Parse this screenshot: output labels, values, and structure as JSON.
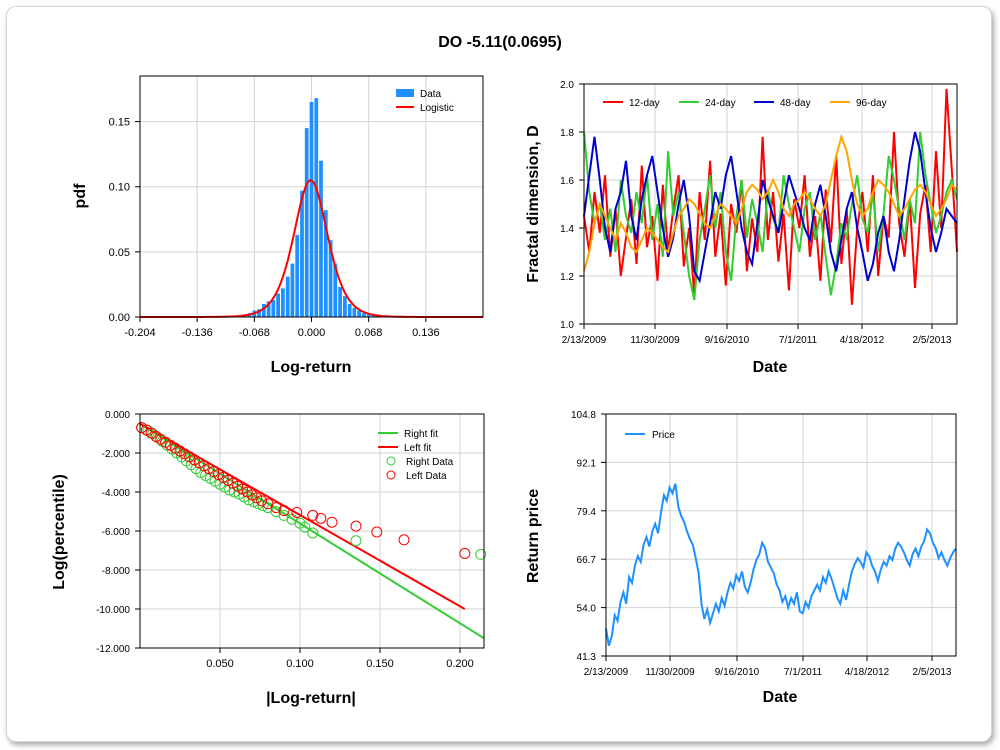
{
  "title": "DO -5.11(0.0695)",
  "colors": {
    "bar": "#1e90ff",
    "red": "#ff0000",
    "green": "#33cc33",
    "blue": "#0000cd",
    "orange": "#ffa500",
    "price": "#1e90ff",
    "grid": "#d3d3d3"
  },
  "chart_data": [
    {
      "type": "bar",
      "name": "pdf-histogram",
      "xlabel": "Log-return",
      "ylabel": "pdf",
      "xlim": [
        -0.204,
        0.204
      ],
      "ylim": [
        0,
        0.185
      ],
      "xticks": [
        "-0.204",
        "-0.136",
        "-0.068",
        "0.000",
        "0.068",
        "0.136"
      ],
      "xtick_values": [
        -0.204,
        -0.136,
        -0.068,
        0.0,
        0.068,
        0.136
      ],
      "yticks": [
        "0.00",
        "0.05",
        "0.10",
        "0.15"
      ],
      "ytick_values": [
        0,
        0.05,
        0.1,
        0.15
      ],
      "legend": [
        "Data",
        "Logistic"
      ],
      "bin_width": 0.00567,
      "bins_x": [
        -0.0907,
        -0.085,
        -0.0794,
        -0.0737,
        -0.068,
        -0.0624,
        -0.0567,
        -0.051,
        -0.0454,
        -0.0397,
        -0.034,
        -0.0283,
        -0.0227,
        -0.017,
        -0.0113,
        -0.0057,
        0.0,
        0.0057,
        0.0113,
        0.017,
        0.0227,
        0.0283,
        0.034,
        0.0397,
        0.0454,
        0.051,
        0.0567,
        0.0624,
        0.068,
        0.0737,
        0.0794,
        0.085,
        0.0907,
        0.0964,
        0.102
      ],
      "values": [
        0.001,
        0.001,
        0.002,
        0.003,
        0.005,
        0.006,
        0.01,
        0.012,
        0.013,
        0.018,
        0.022,
        0.031,
        0.041,
        0.063,
        0.097,
        0.145,
        0.165,
        0.168,
        0.12,
        0.082,
        0.059,
        0.041,
        0.023,
        0.016,
        0.01,
        0.007,
        0.005,
        0.003,
        0.002,
        0.002,
        0.001,
        0.001,
        0.001,
        0.0005,
        0.0005
      ],
      "logistic": {
        "mu": -0.001,
        "s": 0.0135
      }
    },
    {
      "type": "line",
      "name": "fractal-dimension",
      "xlabel": "Date",
      "ylabel": "Fractal dimension, D",
      "xticks": [
        "2/13/2009",
        "11/30/2009",
        "9/16/2010",
        "7/1/2011",
        "4/18/2012",
        "2/5/2013"
      ],
      "yticks": [
        "1.0",
        "1.2",
        "1.4",
        "1.6",
        "1.8",
        "2.0"
      ],
      "ylim": [
        1.0,
        2.0
      ],
      "series": [
        {
          "name": "12-day",
          "color": "#ff0000",
          "values": [
            1.45,
            1.3,
            1.55,
            1.38,
            1.62,
            1.28,
            1.48,
            1.2,
            1.36,
            1.52,
            1.25,
            1.66,
            1.32,
            1.45,
            1.18,
            1.58,
            1.3,
            1.48,
            1.62,
            1.24,
            1.4,
            1.12,
            1.55,
            1.35,
            1.68,
            1.28,
            1.46,
            1.16,
            1.5,
            1.38,
            1.6,
            1.22,
            1.44,
            1.3,
            1.78,
            1.35,
            1.55,
            1.26,
            1.46,
            1.14,
            1.52,
            1.4,
            1.62,
            1.28,
            1.45,
            1.18,
            1.56,
            1.34,
            1.7,
            1.25,
            1.48,
            1.08,
            1.4,
            1.55,
            1.3,
            1.62,
            1.2,
            1.45,
            1.36,
            1.8,
            1.42,
            1.28,
            1.52,
            1.15,
            1.46,
            1.58,
            1.3,
            1.72,
            1.4,
            1.98,
            1.65,
            1.3
          ]
        },
        {
          "name": "24-day",
          "color": "#33cc33",
          "values": [
            1.8,
            1.55,
            1.42,
            1.5,
            1.35,
            1.48,
            1.3,
            1.6,
            1.45,
            1.38,
            1.55,
            1.42,
            1.62,
            1.35,
            1.5,
            1.28,
            1.72,
            1.45,
            1.55,
            1.38,
            1.2,
            1.1,
            1.35,
            1.48,
            1.62,
            1.4,
            1.55,
            1.3,
            1.18,
            1.45,
            1.6,
            1.36,
            1.52,
            1.42,
            1.3,
            1.56,
            1.44,
            1.38,
            1.62,
            1.5,
            1.4,
            1.3,
            1.48,
            1.55,
            1.35,
            1.46,
            1.28,
            1.12,
            1.25,
            1.42,
            1.36,
            1.5,
            1.62,
            1.44,
            1.38,
            1.55,
            1.3,
            1.46,
            1.7,
            1.6,
            1.48,
            1.35,
            1.52,
            1.42,
            1.8,
            1.62,
            1.5,
            1.38,
            1.45,
            1.55,
            1.6,
            1.52
          ]
        },
        {
          "name": "48-day",
          "color": "#0000cd",
          "values": [
            1.45,
            1.62,
            1.78,
            1.6,
            1.4,
            1.3,
            1.48,
            1.55,
            1.68,
            1.45,
            1.35,
            1.52,
            1.62,
            1.7,
            1.55,
            1.4,
            1.28,
            1.36,
            1.5,
            1.6,
            1.45,
            1.22,
            1.18,
            1.3,
            1.42,
            1.55,
            1.48,
            1.62,
            1.7,
            1.55,
            1.4,
            1.3,
            1.25,
            1.42,
            1.6,
            1.52,
            1.45,
            1.38,
            1.5,
            1.62,
            1.55,
            1.48,
            1.4,
            1.35,
            1.5,
            1.58,
            1.45,
            1.3,
            1.22,
            1.35,
            1.48,
            1.55,
            1.4,
            1.3,
            1.18,
            1.25,
            1.38,
            1.45,
            1.3,
            1.22,
            1.35,
            1.52,
            1.68,
            1.8,
            1.72,
            1.55,
            1.4,
            1.3,
            1.38,
            1.48,
            1.45,
            1.42
          ]
        },
        {
          "name": "96-day",
          "color": "#ffa500",
          "values": [
            1.22,
            1.3,
            1.42,
            1.5,
            1.45,
            1.4,
            1.35,
            1.42,
            1.38,
            1.32,
            1.3,
            1.35,
            1.4,
            1.38,
            1.35,
            1.32,
            1.3,
            1.38,
            1.45,
            1.48,
            1.52,
            1.5,
            1.46,
            1.42,
            1.4,
            1.45,
            1.5,
            1.48,
            1.45,
            1.42,
            1.48,
            1.55,
            1.58,
            1.56,
            1.52,
            1.55,
            1.6,
            1.55,
            1.48,
            1.45,
            1.5,
            1.52,
            1.55,
            1.52,
            1.48,
            1.45,
            1.5,
            1.6,
            1.7,
            1.78,
            1.72,
            1.6,
            1.5,
            1.45,
            1.48,
            1.55,
            1.6,
            1.58,
            1.55,
            1.5,
            1.45,
            1.48,
            1.52,
            1.56,
            1.58,
            1.55,
            1.5,
            1.45,
            1.48,
            1.52,
            1.58,
            1.56
          ]
        }
      ]
    },
    {
      "type": "scatter",
      "name": "tail-plot",
      "xlabel": "|Log-return|",
      "ylabel": "Log(percentile)",
      "xlim": [
        0,
        0.215
      ],
      "ylim": [
        -12,
        0
      ],
      "xticks": [
        "0.050",
        "0.100",
        "0.150",
        "0.200"
      ],
      "xtick_values": [
        0.05,
        0.1,
        0.15,
        0.2
      ],
      "yticks": [
        "0.000",
        "-2.000",
        "-4.000",
        "-6.000",
        "-8.000",
        "-10.000",
        "-12.000"
      ],
      "ytick_values": [
        0,
        -2,
        -4,
        -6,
        -8,
        -10,
        -12
      ],
      "legend": [
        "Right fit",
        "Left fit",
        "Right Data",
        "Left Data"
      ],
      "right_fit": {
        "x": [
          0,
          0.215
        ],
        "y": [
          -0.5,
          -11.5
        ]
      },
      "left_fit": {
        "x": [
          0,
          0.203
        ],
        "y": [
          -0.5,
          -10.0
        ]
      },
      "right_data": {
        "x": [
          0.001,
          0.005,
          0.008,
          0.011,
          0.014,
          0.017,
          0.02,
          0.023,
          0.026,
          0.029,
          0.032,
          0.035,
          0.038,
          0.041,
          0.044,
          0.047,
          0.05,
          0.053,
          0.056,
          0.059,
          0.062,
          0.065,
          0.068,
          0.071,
          0.074,
          0.077,
          0.08,
          0.085,
          0.09,
          0.095,
          0.1,
          0.103,
          0.108,
          0.135,
          0.213
        ],
        "y": [
          -0.7,
          -0.85,
          -1.0,
          -1.2,
          -1.4,
          -1.6,
          -1.8,
          -2.0,
          -2.2,
          -2.4,
          -2.6,
          -2.8,
          -3.0,
          -3.15,
          -3.3,
          -3.45,
          -3.6,
          -3.75,
          -3.9,
          -4.0,
          -4.1,
          -4.25,
          -4.4,
          -4.5,
          -4.6,
          -4.7,
          -4.8,
          -5.0,
          -5.2,
          -5.4,
          -5.6,
          -5.8,
          -6.1,
          -6.5,
          -7.2
        ]
      },
      "left_data": {
        "x": [
          0.001,
          0.004,
          0.007,
          0.01,
          0.013,
          0.016,
          0.019,
          0.022,
          0.025,
          0.028,
          0.031,
          0.034,
          0.037,
          0.04,
          0.043,
          0.046,
          0.049,
          0.052,
          0.055,
          0.058,
          0.061,
          0.064,
          0.067,
          0.07,
          0.073,
          0.076,
          0.08,
          0.085,
          0.09,
          0.098,
          0.108,
          0.113,
          0.12,
          0.135,
          0.148,
          0.165,
          0.203
        ],
        "y": [
          -0.7,
          -0.82,
          -0.98,
          -1.15,
          -1.3,
          -1.45,
          -1.6,
          -1.75,
          -1.9,
          -2.05,
          -2.2,
          -2.35,
          -2.5,
          -2.65,
          -2.8,
          -2.95,
          -3.1,
          -3.25,
          -3.4,
          -3.55,
          -3.7,
          -3.85,
          -4.0,
          -4.15,
          -4.3,
          -4.45,
          -4.6,
          -4.8,
          -4.95,
          -5.05,
          -5.2,
          -5.35,
          -5.55,
          -5.75,
          -6.05,
          -6.45,
          -7.15
        ]
      }
    },
    {
      "type": "line",
      "name": "price",
      "xlabel": "Date",
      "ylabel": "Return price",
      "xticks": [
        "2/13/2009",
        "11/30/2009",
        "9/16/2010",
        "7/1/2011",
        "4/18/2012",
        "2/5/2013"
      ],
      "yticks": [
        "41.3",
        "54.0",
        "66.7",
        "79.4",
        "92.1",
        "104.8"
      ],
      "ylim": [
        41.3,
        104.8
      ],
      "legend": [
        "Price"
      ],
      "values": [
        48.5,
        44.0,
        46.5,
        52.0,
        50.5,
        55.5,
        58.0,
        55.0,
        62.0,
        60.5,
        65.0,
        67.5,
        66.0,
        70.5,
        72.5,
        70.0,
        74.0,
        76.0,
        73.5,
        79.0,
        83.5,
        82.0,
        85.5,
        84.0,
        86.5,
        80.5,
        78.0,
        76.5,
        74.0,
        72.0,
        70.5,
        67.0,
        63.0,
        55.0,
        51.0,
        53.5,
        50.0,
        52.5,
        55.0,
        53.0,
        56.5,
        54.5,
        58.0,
        60.5,
        59.0,
        62.5,
        61.0,
        63.5,
        59.5,
        58.0,
        60.5,
        64.0,
        66.5,
        68.0,
        71.0,
        69.5,
        66.0,
        64.5,
        63.0,
        60.0,
        58.5,
        55.5,
        57.0,
        54.0,
        56.5,
        55.0,
        58.0,
        53.0,
        52.5,
        55.5,
        54.0,
        57.0,
        58.5,
        60.0,
        58.5,
        62.0,
        60.5,
        63.5,
        61.5,
        59.0,
        56.5,
        55.0,
        58.5,
        56.0,
        60.0,
        63.5,
        65.5,
        67.0,
        66.0,
        64.5,
        68.5,
        67.5,
        65.0,
        63.5,
        61.0,
        64.0,
        66.0,
        65.0,
        67.5,
        66.5,
        69.5,
        71.0,
        70.0,
        68.5,
        66.5,
        65.0,
        68.0,
        69.5,
        67.5,
        70.0,
        71.5,
        74.5,
        73.5,
        71.0,
        69.5,
        67.0,
        68.5,
        66.5,
        65.0,
        67.0,
        68.5,
        69.5
      ]
    }
  ]
}
